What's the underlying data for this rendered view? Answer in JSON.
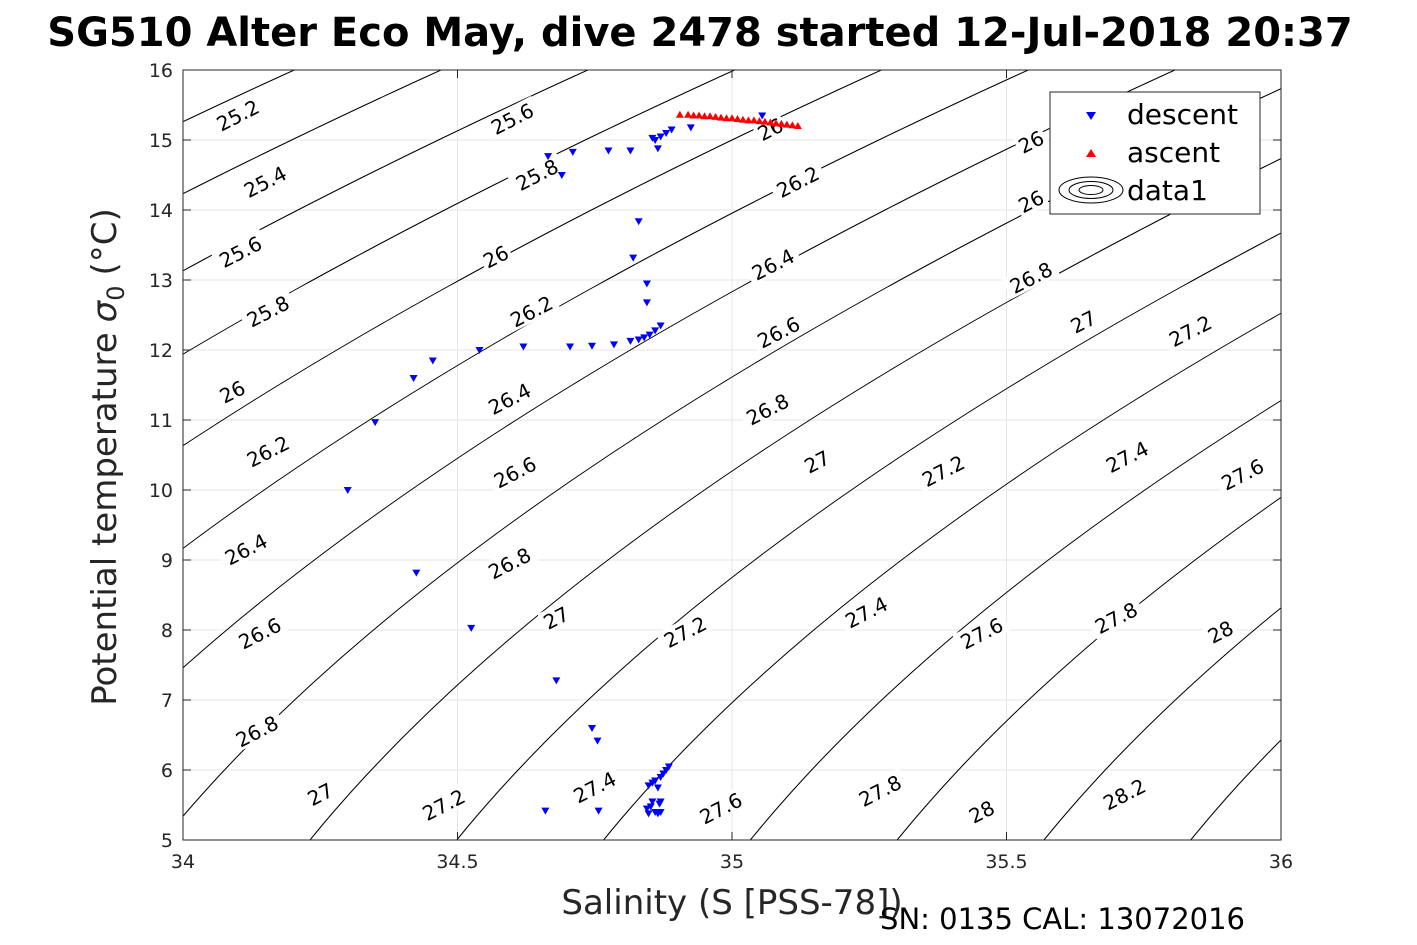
{
  "chart_data": {
    "type": "scatter",
    "title": "SG510 Alter Eco May, dive 2478 started 12-Jul-2018 20:37",
    "xlabel": "Salinity (S [PSS-78])",
    "ylabel": "Potential temperature",
    "ylabel_symbol": "σ",
    "ylabel_subscript": "0",
    "ylabel_unit": "(°C)",
    "footer": "SN: 0135  CAL: 13072016",
    "xlim": [
      34,
      36
    ],
    "ylim": [
      5,
      16
    ],
    "x_ticks": [
      34,
      34.5,
      35,
      35.5,
      36
    ],
    "x_tick_labels": [
      "34",
      "34.5",
      "35",
      "35.5",
      "36"
    ],
    "y_ticks": [
      5,
      6,
      7,
      8,
      9,
      10,
      11,
      12,
      13,
      14,
      15,
      16
    ],
    "y_tick_labels": [
      "5",
      "6",
      "7",
      "8",
      "9",
      "10",
      "11",
      "12",
      "13",
      "14",
      "15",
      "16"
    ],
    "grid": true,
    "legend_position": "top-right",
    "series": [
      {
        "name": "descent",
        "marker": "triangle-down",
        "color": "#0000ff",
        "points": [
          [
            34.3,
            10.0
          ],
          [
            34.35,
            10.97
          ],
          [
            34.42,
            11.6
          ],
          [
            34.455,
            11.85
          ],
          [
            34.54,
            12.0
          ],
          [
            34.62,
            12.05
          ],
          [
            34.705,
            12.05
          ],
          [
            34.745,
            12.06
          ],
          [
            34.785,
            12.08
          ],
          [
            34.815,
            12.13
          ],
          [
            34.83,
            12.15
          ],
          [
            34.84,
            12.18
          ],
          [
            34.85,
            12.22
          ],
          [
            34.86,
            12.28
          ],
          [
            34.87,
            12.35
          ],
          [
            34.82,
            13.32
          ],
          [
            34.83,
            13.84
          ],
          [
            34.845,
            12.95
          ],
          [
            34.845,
            12.68
          ],
          [
            34.665,
            14.77
          ],
          [
            34.69,
            14.5
          ],
          [
            34.71,
            14.83
          ],
          [
            34.775,
            14.85
          ],
          [
            34.815,
            14.85
          ],
          [
            34.855,
            15.03
          ],
          [
            34.86,
            15.0
          ],
          [
            34.865,
            14.88
          ],
          [
            34.87,
            15.05
          ],
          [
            34.88,
            15.1
          ],
          [
            34.89,
            15.15
          ],
          [
            34.925,
            15.18
          ],
          [
            35.055,
            15.35
          ],
          [
            34.425,
            8.82
          ],
          [
            34.525,
            8.03
          ],
          [
            34.68,
            7.28
          ],
          [
            34.745,
            6.6
          ],
          [
            34.755,
            6.42
          ],
          [
            34.66,
            5.42
          ],
          [
            34.757,
            5.42
          ],
          [
            34.845,
            5.45
          ],
          [
            34.848,
            5.38
          ],
          [
            34.852,
            5.48
          ],
          [
            34.855,
            5.55
          ],
          [
            34.86,
            5.4
          ],
          [
            34.865,
            5.38
          ],
          [
            34.868,
            5.52
          ],
          [
            34.87,
            5.4
          ],
          [
            34.848,
            5.78
          ],
          [
            34.855,
            5.82
          ],
          [
            34.86,
            5.85
          ],
          [
            34.865,
            5.75
          ],
          [
            34.87,
            5.9
          ],
          [
            34.875,
            5.95
          ],
          [
            34.88,
            6.0
          ],
          [
            34.885,
            6.05
          ],
          [
            34.87,
            5.55
          ]
        ]
      },
      {
        "name": "ascent",
        "marker": "triangle-up",
        "color": "#ff0000",
        "points": [
          [
            34.905,
            15.36
          ],
          [
            34.92,
            15.36
          ],
          [
            34.94,
            15.35
          ],
          [
            34.96,
            15.34
          ],
          [
            34.98,
            15.32
          ],
          [
            35.0,
            15.31
          ],
          [
            35.02,
            15.29
          ],
          [
            35.04,
            15.28
          ],
          [
            35.06,
            15.26
          ],
          [
            35.08,
            15.24
          ],
          [
            35.1,
            15.22
          ],
          [
            35.12,
            15.2
          ],
          [
            34.93,
            15.35
          ],
          [
            34.95,
            15.34
          ],
          [
            34.97,
            15.33
          ],
          [
            34.99,
            15.31
          ],
          [
            35.01,
            15.3
          ],
          [
            35.03,
            15.28
          ],
          [
            35.05,
            15.27
          ],
          [
            35.07,
            15.25
          ],
          [
            35.09,
            15.23
          ],
          [
            35.11,
            15.21
          ]
        ]
      },
      {
        "name": "data1",
        "type": "contour",
        "color": "#000000",
        "levels": [
          25.2,
          25.4,
          25.6,
          25.8,
          26,
          26.2,
          26.4,
          26.6,
          26.8,
          27,
          27.2,
          27.4,
          27.6,
          27.8,
          28,
          28.2
        ]
      }
    ],
    "contour_labels": [
      {
        "text": "25.2",
        "x": 34.1,
        "y": 15.35
      },
      {
        "text": "25.6",
        "x": 34.6,
        "y": 15.3
      },
      {
        "text": "25.4",
        "x": 34.15,
        "y": 14.4
      },
      {
        "text": "25.8",
        "x": 34.645,
        "y": 14.5
      },
      {
        "text": "26",
        "x": 35.07,
        "y": 15.15
      },
      {
        "text": "26",
        "x": 35.545,
        "y": 14.97
      },
      {
        "text": "26.2",
        "x": 35.12,
        "y": 14.4
      },
      {
        "text": "26",
        "x": 35.545,
        "y": 14.12
      },
      {
        "text": "25.6",
        "x": 34.105,
        "y": 13.4
      },
      {
        "text": "26",
        "x": 34.57,
        "y": 13.33
      },
      {
        "text": "26.4",
        "x": 35.075,
        "y": 13.22
      },
      {
        "text": "26.8",
        "x": 35.545,
        "y": 13.03
      },
      {
        "text": "25.8",
        "x": 34.155,
        "y": 12.55
      },
      {
        "text": "26.2",
        "x": 34.635,
        "y": 12.55
      },
      {
        "text": "27",
        "x": 35.64,
        "y": 12.4
      },
      {
        "text": "27.2",
        "x": 35.835,
        "y": 12.27
      },
      {
        "text": "26.6",
        "x": 35.085,
        "y": 12.25
      },
      {
        "text": "26",
        "x": 34.09,
        "y": 11.4
      },
      {
        "text": "26.4",
        "x": 34.595,
        "y": 11.3
      },
      {
        "text": "26.8",
        "x": 35.065,
        "y": 11.15
      },
      {
        "text": "26.2",
        "x": 34.155,
        "y": 10.55
      },
      {
        "text": "26.6",
        "x": 34.605,
        "y": 10.25
      },
      {
        "text": "27",
        "x": 35.155,
        "y": 10.4
      },
      {
        "text": "27.4",
        "x": 35.72,
        "y": 10.47
      },
      {
        "text": "27.2",
        "x": 35.385,
        "y": 10.27
      },
      {
        "text": "27.6",
        "x": 35.93,
        "y": 10.22
      },
      {
        "text": "26.4",
        "x": 34.115,
        "y": 9.15
      },
      {
        "text": "26.8",
        "x": 34.595,
        "y": 8.95
      },
      {
        "text": "26.6",
        "x": 34.14,
        "y": 7.95
      },
      {
        "text": "27",
        "x": 34.68,
        "y": 8.17
      },
      {
        "text": "27.2",
        "x": 34.915,
        "y": 7.97
      },
      {
        "text": "27.4",
        "x": 35.245,
        "y": 8.25
      },
      {
        "text": "27.6",
        "x": 35.455,
        "y": 7.95
      },
      {
        "text": "27.8",
        "x": 35.7,
        "y": 8.17
      },
      {
        "text": "28",
        "x": 35.89,
        "y": 7.97
      },
      {
        "text": "26.8",
        "x": 34.135,
        "y": 6.55
      },
      {
        "text": "27",
        "x": 34.25,
        "y": 5.65
      },
      {
        "text": "27.2",
        "x": 34.475,
        "y": 5.5
      },
      {
        "text": "27.4",
        "x": 34.75,
        "y": 5.75
      },
      {
        "text": "27.6",
        "x": 34.98,
        "y": 5.45
      },
      {
        "text": "27.8",
        "x": 35.27,
        "y": 5.7
      },
      {
        "text": "28",
        "x": 35.455,
        "y": 5.4
      },
      {
        "text": "28.2",
        "x": 35.715,
        "y": 5.65
      }
    ]
  },
  "colors": {
    "grid": "#e6e6e6",
    "axis": "#262626",
    "descent": "#0000ff",
    "ascent": "#ff0000",
    "contour": "#000000"
  }
}
